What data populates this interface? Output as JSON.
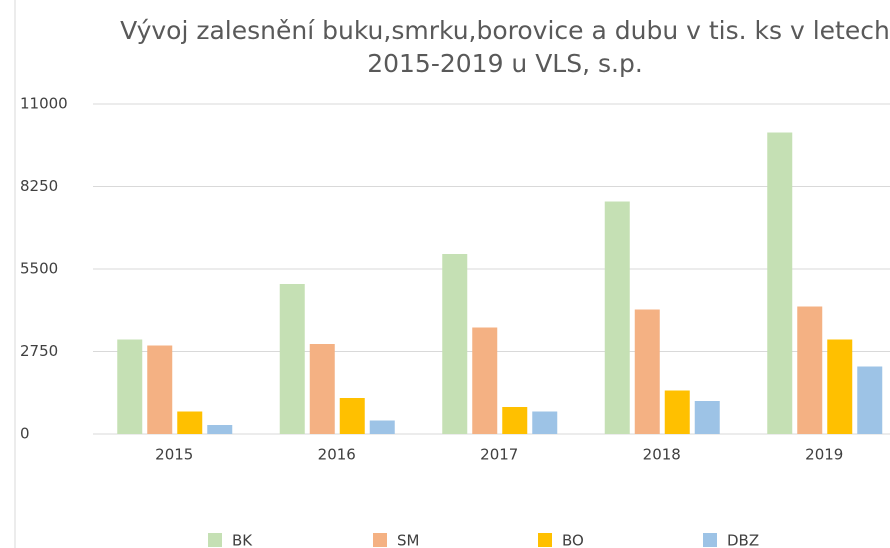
{
  "chart_data": {
    "type": "bar",
    "title": "Vývoj zalesnění buku,smrku,borovice a dubu v tis. ks v letech  2015-2019 u VLS, s.p.",
    "categories": [
      "2015",
      "2016",
      "2017",
      "2018",
      "2019"
    ],
    "series": [
      {
        "name": "BK",
        "color": "#c5e0b4",
        "values": [
          3150,
          5000,
          6000,
          7750,
          10050
        ]
      },
      {
        "name": "SM",
        "color": "#f4b183",
        "values": [
          2950,
          3000,
          3550,
          4150,
          4250
        ]
      },
      {
        "name": "BO",
        "color": "#ffc000",
        "values": [
          750,
          1200,
          900,
          1450,
          3150
        ]
      },
      {
        "name": "DBZ",
        "color": "#9dc3e6",
        "values": [
          300,
          450,
          750,
          1100,
          2250
        ]
      }
    ],
    "ylim": [
      0,
      11000
    ],
    "yticks": [
      0,
      2750,
      5500,
      8250,
      11000
    ],
    "grid": true,
    "legend": "bottom"
  }
}
